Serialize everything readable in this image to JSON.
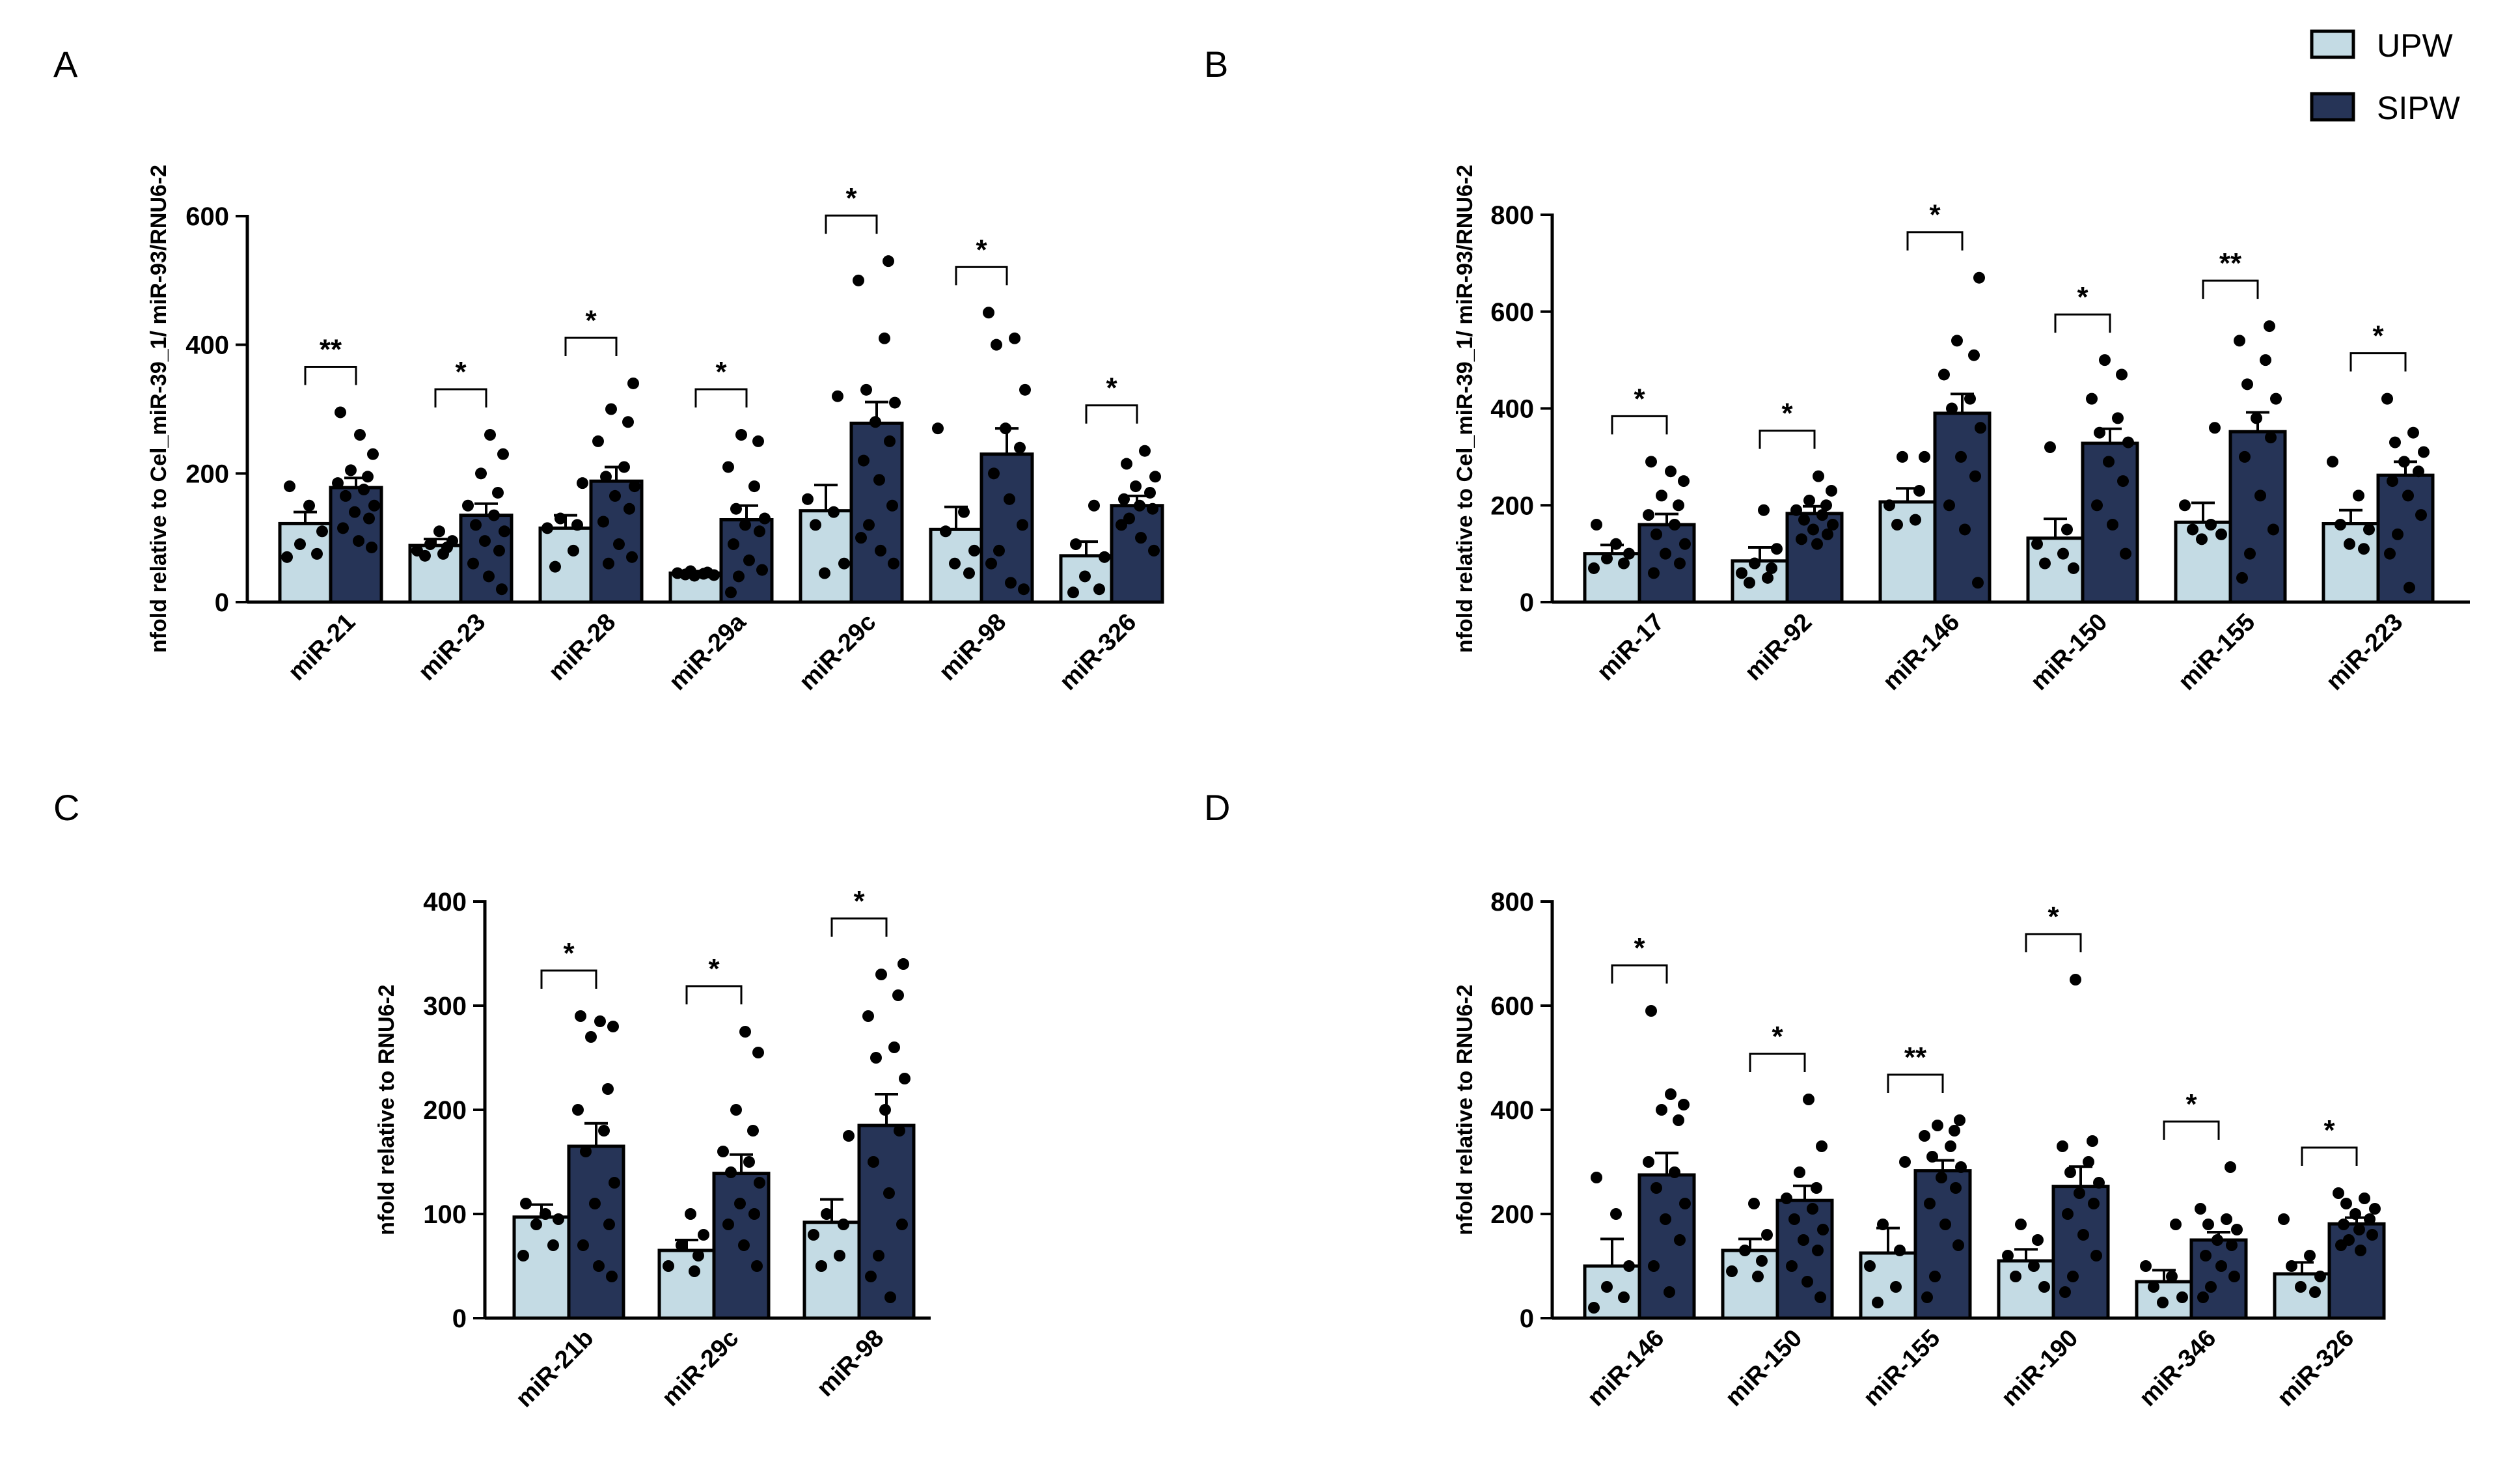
{
  "legend": {
    "position": "top-right",
    "items": [
      {
        "label": "UPW",
        "color": "#c4dbe4"
      },
      {
        "label": "SIPW",
        "color": "#263457"
      }
    ]
  },
  "colors": {
    "UPW": "#c4dbe4",
    "SIPW": "#263457"
  },
  "chart_data": [
    {
      "panel": "A",
      "type": "bar",
      "ylabel": "nfold relative to Cel_miR-39_1/ miR-93/RNU6-2",
      "ylim": [
        0,
        600
      ],
      "yticks": [
        0,
        200,
        400,
        600
      ],
      "categories": [
        "miR-21",
        "miR-23",
        "miR-28",
        "miR-29a",
        "miR-29c",
        "miR-98",
        "miR-326"
      ],
      "series": [
        {
          "name": "UPW",
          "values": [
            122,
            88,
            115,
            45,
            142,
            113,
            72
          ],
          "sem": [
            18,
            10,
            20,
            3,
            40,
            35,
            22
          ]
        },
        {
          "name": "SIPW",
          "values": [
            178,
            135,
            188,
            128,
            278,
            230,
            150
          ],
          "sem": [
            15,
            18,
            22,
            22,
            33,
            40,
            15
          ]
        }
      ],
      "significance": [
        "**",
        "*",
        "*",
        "*",
        "*",
        "*",
        "*"
      ],
      "points": {
        "UPW": [
          [
            180,
            150,
            110,
            90,
            75,
            70
          ],
          [
            110,
            95,
            90,
            85,
            80,
            75,
            72
          ],
          [
            185,
            130,
            120,
            115,
            80,
            55
          ],
          [
            48,
            46,
            45,
            44,
            43,
            42,
            41
          ],
          [
            320,
            160,
            140,
            120,
            60,
            45
          ],
          [
            270,
            140,
            110,
            80,
            60,
            45
          ],
          [
            150,
            90,
            70,
            40,
            20,
            15
          ]
        ],
        "SIPW": [
          [
            295,
            260,
            230,
            205,
            195,
            185,
            175,
            165,
            150,
            140,
            130,
            115,
            95,
            85
          ],
          [
            260,
            230,
            200,
            170,
            150,
            135,
            120,
            110,
            95,
            80,
            60,
            40,
            20
          ],
          [
            340,
            300,
            280,
            250,
            210,
            195,
            180,
            165,
            145,
            125,
            90,
            70,
            60
          ],
          [
            260,
            250,
            210,
            180,
            145,
            130,
            120,
            110,
            90,
            65,
            50,
            40,
            15
          ],
          [
            530,
            500,
            410,
            330,
            310,
            280,
            250,
            220,
            190,
            150,
            120,
            100,
            80,
            60
          ],
          [
            450,
            410,
            400,
            330,
            270,
            240,
            200,
            160,
            120,
            80,
            60,
            30,
            20
          ],
          [
            235,
            215,
            195,
            180,
            170,
            160,
            150,
            145,
            130,
            120,
            100,
            80
          ]
        ]
      }
    },
    {
      "panel": "B",
      "type": "bar",
      "ylabel": "nfold relative to Cel_miR-39_1/ miR-93/RNU6-2",
      "ylim": [
        0,
        800
      ],
      "yticks": [
        0,
        200,
        400,
        600,
        800
      ],
      "categories": [
        "miR-17",
        "miR-92",
        "miR-146",
        "miR-150",
        "miR-155",
        "miR-223"
      ],
      "series": [
        {
          "name": "UPW",
          "values": [
            100,
            85,
            207,
            132,
            165,
            162
          ],
          "sem": [
            18,
            28,
            28,
            40,
            40,
            28
          ]
        },
        {
          "name": "SIPW",
          "values": [
            160,
            183,
            390,
            328,
            352,
            262
          ],
          "sem": [
            22,
            15,
            40,
            30,
            40,
            28
          ]
        }
      ],
      "significance": [
        "*",
        "*",
        "*",
        "*",
        "**",
        "*"
      ],
      "points": {
        "UPW": [
          [
            160,
            120,
            100,
            90,
            80,
            70
          ],
          [
            190,
            110,
            80,
            70,
            60,
            50,
            40
          ],
          [
            300,
            300,
            230,
            200,
            170,
            160
          ],
          [
            320,
            150,
            120,
            100,
            80,
            70
          ],
          [
            360,
            200,
            160,
            150,
            140,
            130
          ],
          [
            290,
            220,
            160,
            150,
            120,
            110
          ]
        ],
        "SIPW": [
          [
            290,
            270,
            250,
            220,
            200,
            180,
            160,
            140,
            120,
            100,
            80,
            60
          ],
          [
            260,
            230,
            210,
            200,
            190,
            180,
            170,
            160,
            150,
            140,
            130,
            120
          ],
          [
            670,
            540,
            510,
            470,
            420,
            400,
            360,
            300,
            260,
            200,
            150,
            40
          ],
          [
            500,
            470,
            420,
            380,
            350,
            330,
            290,
            250,
            200,
            160,
            100
          ],
          [
            570,
            540,
            500,
            450,
            420,
            380,
            340,
            300,
            220,
            150,
            100,
            50
          ],
          [
            420,
            350,
            330,
            310,
            290,
            270,
            250,
            220,
            180,
            140,
            100,
            30
          ]
        ]
      }
    },
    {
      "panel": "C",
      "type": "bar",
      "ylabel": "nfold relative to RNU6-2",
      "ylim": [
        0,
        400
      ],
      "yticks": [
        0,
        100,
        200,
        300,
        400
      ],
      "categories": [
        "miR-21b",
        "miR-29c",
        "miR-98"
      ],
      "series": [
        {
          "name": "UPW",
          "values": [
            97,
            65,
            92
          ],
          "sem": [
            12,
            10,
            22
          ]
        },
        {
          "name": "SIPW",
          "values": [
            165,
            139,
            185
          ],
          "sem": [
            22,
            18,
            30
          ]
        }
      ],
      "significance": [
        "*",
        "*",
        "*"
      ],
      "points": {
        "UPW": [
          [
            110,
            100,
            95,
            90,
            70,
            60
          ],
          [
            100,
            80,
            70,
            60,
            50,
            45
          ],
          [
            175,
            100,
            90,
            80,
            60,
            50
          ]
        ],
        "SIPW": [
          [
            290,
            285,
            280,
            270,
            220,
            200,
            180,
            160,
            130,
            110,
            90,
            70,
            50,
            40
          ],
          [
            275,
            255,
            200,
            180,
            160,
            150,
            140,
            130,
            110,
            100,
            90,
            70,
            50
          ],
          [
            340,
            330,
            310,
            290,
            260,
            250,
            230,
            200,
            180,
            150,
            120,
            90,
            60,
            40,
            20
          ]
        ]
      }
    },
    {
      "panel": "D",
      "type": "bar",
      "ylabel": "nfold relative to RNU6-2",
      "ylim": [
        0,
        800
      ],
      "yticks": [
        0,
        200,
        400,
        600,
        800
      ],
      "categories": [
        "miR-146",
        "miR-150",
        "miR-155",
        "miR-190",
        "miR-346",
        "miR-326"
      ],
      "series": [
        {
          "name": "UPW",
          "values": [
            100,
            130,
            125,
            110,
            70,
            85
          ],
          "sem": [
            52,
            22,
            48,
            22,
            22,
            22
          ]
        },
        {
          "name": "SIPW",
          "values": [
            275,
            226,
            283,
            253,
            150,
            181
          ],
          "sem": [
            42,
            28,
            20,
            38,
            15,
            12
          ]
        }
      ],
      "significance": [
        "*",
        "*",
        "**",
        "*",
        "*",
        "*"
      ],
      "points": {
        "UPW": [
          [
            270,
            200,
            100,
            60,
            40,
            20
          ],
          [
            220,
            160,
            130,
            110,
            90,
            80
          ],
          [
            300,
            180,
            130,
            100,
            60,
            30
          ],
          [
            180,
            150,
            120,
            100,
            80,
            60
          ],
          [
            180,
            100,
            80,
            60,
            40,
            30
          ],
          [
            190,
            120,
            100,
            80,
            60,
            50
          ]
        ],
        "SIPW": [
          [
            590,
            430,
            410,
            400,
            380,
            300,
            280,
            250,
            220,
            190,
            150,
            100,
            50
          ],
          [
            420,
            330,
            280,
            250,
            230,
            210,
            190,
            170,
            150,
            130,
            100,
            70,
            40
          ],
          [
            380,
            370,
            360,
            350,
            330,
            310,
            290,
            270,
            250,
            220,
            180,
            140,
            80,
            40
          ],
          [
            650,
            340,
            330,
            300,
            280,
            260,
            240,
            220,
            200,
            160,
            120,
            80,
            50
          ],
          [
            290,
            210,
            190,
            180,
            170,
            150,
            140,
            120,
            100,
            80,
            60,
            40
          ],
          [
            240,
            230,
            220,
            210,
            200,
            190,
            180,
            170,
            160,
            150,
            140,
            130
          ]
        ]
      }
    }
  ]
}
